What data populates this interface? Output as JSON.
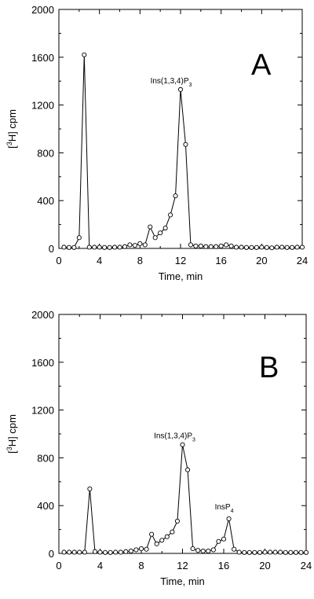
{
  "chart_data": [
    {
      "type": "line",
      "panel_label": "A",
      "xlabel": "Time, min",
      "ylabel_prefix": "[",
      "ylabel_sup": "3",
      "ylabel_suffix": "H] cpm",
      "xlim": [
        0,
        24
      ],
      "ylim": [
        0,
        2000
      ],
      "xticks": [
        "0",
        "4",
        "8",
        "12",
        "16",
        "20",
        "24"
      ],
      "yticks": [
        "0",
        "400",
        "800",
        "1200",
        "1600",
        "2000"
      ],
      "grid": false,
      "marker": "open-circle",
      "x": [
        0.5,
        1.0,
        1.5,
        2.0,
        2.5,
        3.0,
        3.5,
        4.0,
        4.5,
        5.0,
        5.5,
        6.0,
        6.5,
        7.0,
        7.5,
        8.0,
        8.5,
        9.0,
        9.5,
        10.0,
        10.5,
        11.0,
        11.5,
        12.0,
        12.5,
        13.0,
        13.5,
        14.0,
        14.5,
        15.0,
        15.5,
        16.0,
        16.5,
        17.0,
        17.5,
        18.0,
        18.5,
        19.0,
        19.5,
        20.0,
        20.5,
        21.0,
        21.5,
        22.0,
        22.5,
        23.0,
        23.5,
        24.0
      ],
      "y": [
        10,
        8,
        8,
        90,
        1620,
        10,
        10,
        10,
        8,
        8,
        10,
        10,
        15,
        30,
        25,
        40,
        30,
        180,
        90,
        130,
        170,
        280,
        440,
        1330,
        870,
        30,
        20,
        20,
        15,
        15,
        15,
        20,
        30,
        20,
        10,
        10,
        8,
        8,
        8,
        10,
        8,
        5,
        10,
        10,
        8,
        8,
        10,
        10
      ],
      "annotations": [
        {
          "text_main": "Ins(1,3,4)P",
          "text_sub": "3",
          "x": 12.0,
          "y": 1330
        }
      ]
    },
    {
      "type": "line",
      "panel_label": "B",
      "xlabel": "Time, min",
      "ylabel_prefix": "[",
      "ylabel_sup": "3",
      "ylabel_suffix": "H] cpm",
      "xlim": [
        0,
        24
      ],
      "ylim": [
        0,
        2000
      ],
      "xticks": [
        "0",
        "4",
        "8",
        "12",
        "16",
        "20",
        "24"
      ],
      "yticks": [
        "0",
        "400",
        "800",
        "1200",
        "1600",
        "2000"
      ],
      "grid": false,
      "marker": "open-circle",
      "x": [
        0.5,
        1.0,
        1.5,
        2.0,
        2.5,
        3.0,
        3.5,
        4.0,
        4.5,
        5.0,
        5.5,
        6.0,
        6.5,
        7.0,
        7.5,
        8.0,
        8.5,
        9.0,
        9.5,
        10.0,
        10.5,
        11.0,
        11.5,
        12.0,
        12.5,
        13.0,
        13.5,
        14.0,
        14.5,
        15.0,
        15.5,
        16.0,
        16.5,
        17.0,
        17.5,
        18.0,
        18.5,
        19.0,
        19.5,
        20.0,
        20.5,
        21.0,
        21.5,
        22.0,
        22.5,
        23.0,
        23.5,
        24.0
      ],
      "y": [
        10,
        10,
        10,
        10,
        10,
        540,
        15,
        10,
        8,
        8,
        10,
        10,
        15,
        20,
        30,
        40,
        35,
        160,
        80,
        110,
        140,
        180,
        270,
        910,
        700,
        40,
        25,
        20,
        20,
        30,
        100,
        120,
        290,
        35,
        10,
        8,
        8,
        8,
        8,
        10,
        10,
        10,
        10,
        8,
        8,
        8,
        8,
        8
      ],
      "annotations": [
        {
          "text_main": "Ins(1,3,4)P",
          "text_sub": "3",
          "x": 12.0,
          "y": 910
        },
        {
          "text_main": "InsP",
          "text_sub": "4",
          "x": 16.5,
          "y": 290
        }
      ]
    }
  ]
}
